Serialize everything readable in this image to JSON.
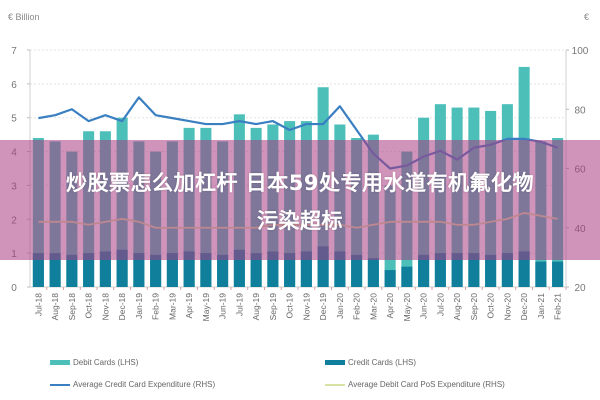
{
  "chart_data": {
    "type": "bar",
    "title": "",
    "unit_label_left": "€ Billion",
    "unit_label_right": "€",
    "categories": [
      "Jul-18",
      "Aug-18",
      "Sep-18",
      "Oct-18",
      "Nov-18",
      "Dec-18",
      "Jan-19",
      "Feb-19",
      "Mar-19",
      "Apr-19",
      "May-19",
      "Jun-19",
      "Jul-19",
      "Aug-19",
      "Sep-19",
      "Oct-19",
      "Nov-19",
      "Dec-19",
      "Jan-20",
      "Feb-20",
      "Mar-20",
      "Apr-20",
      "May-20",
      "Jun-20",
      "Jul-20",
      "Aug-20",
      "Sep-20",
      "Oct-20",
      "Nov-20",
      "Dec-20",
      "Jan-21",
      "Feb-21"
    ],
    "left_axis": {
      "min": 0,
      "max": 7,
      "ticks": [
        0,
        1,
        2,
        3,
        4,
        5,
        6,
        7
      ]
    },
    "right_axis": {
      "min": 20,
      "max": 100,
      "ticks": [
        20,
        40,
        60,
        80,
        100
      ]
    },
    "grid": true,
    "legend_position": "bottom",
    "series": [
      {
        "name": "Debit Cards (LHS)",
        "axis": "left",
        "type": "bar",
        "color": "#4cbfb9",
        "values": [
          4.4,
          4.3,
          4.0,
          4.6,
          4.6,
          5.0,
          4.3,
          4.0,
          4.3,
          4.7,
          4.7,
          4.3,
          5.1,
          4.7,
          4.8,
          4.9,
          4.9,
          5.9,
          4.8,
          4.4,
          4.5,
          3.0,
          4.0,
          5.0,
          5.4,
          5.3,
          5.3,
          5.2,
          5.4,
          6.5,
          4.3,
          4.4
        ]
      },
      {
        "name": "Credit Cards (LHS)",
        "axis": "left",
        "type": "bar",
        "color": "#0f7f9b",
        "values": [
          1.0,
          1.0,
          0.95,
          1.0,
          1.05,
          1.1,
          1.0,
          0.95,
          1.0,
          1.05,
          1.0,
          0.95,
          1.1,
          1.0,
          1.05,
          1.0,
          1.05,
          1.2,
          1.05,
          0.95,
          0.85,
          0.5,
          0.6,
          0.95,
          1.0,
          1.0,
          1.0,
          0.95,
          1.0,
          1.05,
          0.75,
          0.75
        ]
      },
      {
        "name": "Average Credit Card Expenditure (RHS)",
        "axis": "right",
        "type": "line",
        "color": "#3a7fc1",
        "values": [
          77,
          78,
          80,
          76,
          78,
          76,
          84,
          78,
          77,
          76,
          75,
          75,
          76,
          75,
          76,
          73,
          75,
          75,
          81,
          73,
          65,
          60,
          61,
          64,
          66,
          63,
          67,
          68,
          70,
          70,
          69,
          67
        ]
      },
      {
        "name": "Average Debit Card PoS Expenditure (RHS)",
        "axis": "right",
        "type": "line",
        "color": "#d9e2a0",
        "values": [
          42,
          42,
          42,
          41,
          42,
          43,
          42,
          40,
          40,
          40,
          40,
          40,
          40,
          40,
          41,
          41,
          41,
          41,
          41,
          40,
          41,
          42,
          42,
          42,
          42,
          41,
          41,
          42,
          43,
          45,
          44,
          43
        ]
      }
    ]
  },
  "legend": {
    "items": [
      {
        "label": "Debit Cards (LHS)",
        "kind": "bar",
        "color": "#4cbfb9"
      },
      {
        "label": "Credit Cards (LHS)",
        "kind": "bar",
        "color": "#0f7f9b"
      },
      {
        "label": "Average Credit Card Expenditure (RHS)",
        "kind": "line",
        "color": "#3a7fc1"
      },
      {
        "label": "Average Debit Card PoS Expenditure (RHS)",
        "kind": "line",
        "color": "#d9e2a0"
      }
    ]
  },
  "overlay": {
    "line1": "炒股票怎么加杠杆 日本59处专用水道有机氟化物",
    "line2": "污染超标",
    "color": "#aa3c82"
  }
}
